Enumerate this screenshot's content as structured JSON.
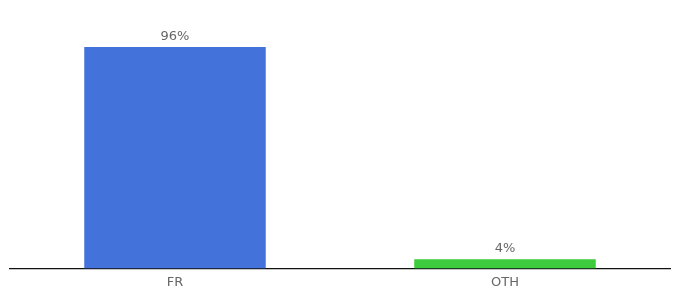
{
  "chart_data": {
    "type": "bar",
    "categories": [
      "FR",
      "OTH"
    ],
    "values": [
      96,
      4
    ],
    "value_labels": [
      "96%",
      "4%"
    ],
    "colors": [
      "#4472db",
      "#3dcc3d"
    ],
    "ylim": [
      0,
      106
    ],
    "data_labels": true,
    "tick_labels": "x",
    "grid": false
  }
}
